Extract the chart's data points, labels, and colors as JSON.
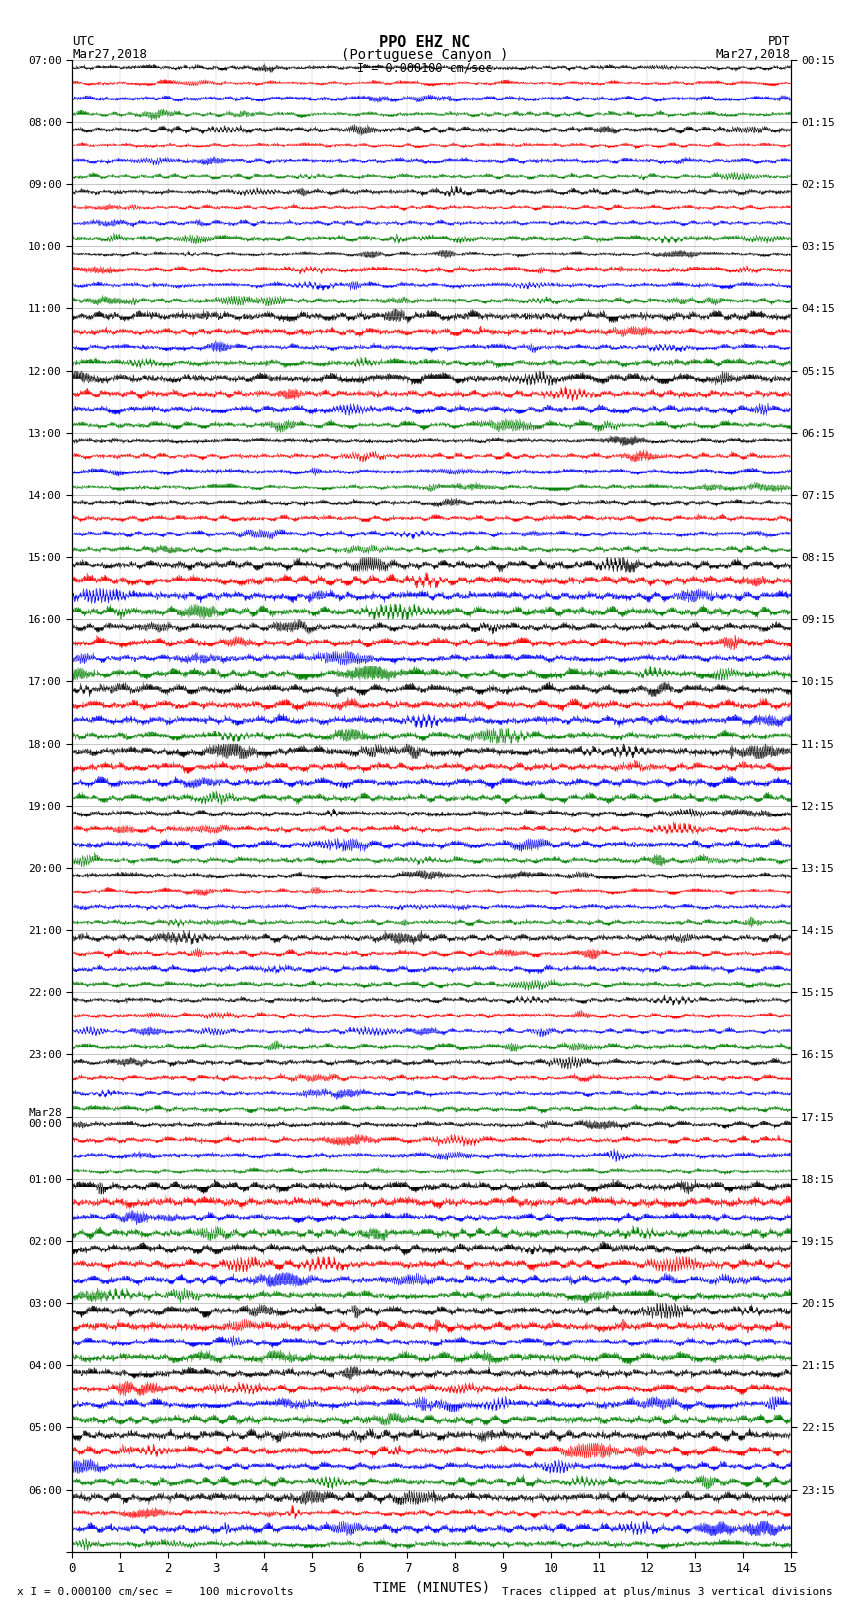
{
  "title_line1": "PPO EHZ NC",
  "title_line2": "(Portuguese Canyon )",
  "title_line3": "I = 0.000100 cm/sec",
  "left_label_line1": "UTC",
  "left_label_line2": "Mar27,2018",
  "right_label_line1": "PDT",
  "right_label_line2": "Mar27,2018",
  "xlabel": "TIME (MINUTES)",
  "footer_left": "x I = 0.000100 cm/sec =    100 microvolts",
  "footer_right": "Traces clipped at plus/minus 3 vertical divisions",
  "xlim": [
    0,
    15
  ],
  "xticks": [
    0,
    1,
    2,
    3,
    4,
    5,
    6,
    7,
    8,
    9,
    10,
    11,
    12,
    13,
    14,
    15
  ],
  "colors": [
    "black",
    "red",
    "blue",
    "green"
  ],
  "utc_labels": [
    "07:00",
    "08:00",
    "09:00",
    "10:00",
    "11:00",
    "12:00",
    "13:00",
    "14:00",
    "15:00",
    "16:00",
    "17:00",
    "18:00",
    "19:00",
    "20:00",
    "21:00",
    "22:00",
    "23:00",
    "Mar28\n00:00",
    "01:00",
    "02:00",
    "03:00",
    "04:00",
    "05:00",
    "06:00"
  ],
  "pdt_labels": [
    "00:15",
    "01:15",
    "02:15",
    "03:15",
    "04:15",
    "05:15",
    "06:15",
    "07:15",
    "08:15",
    "09:15",
    "10:15",
    "11:15",
    "12:15",
    "13:15",
    "14:15",
    "15:15",
    "16:15",
    "17:15",
    "18:15",
    "19:15",
    "20:15",
    "21:15",
    "22:15",
    "23:15"
  ],
  "n_hours": 24,
  "traces_per_hour": 4,
  "noise_seed": 42,
  "bg_color": "white",
  "plot_bg_color": "white",
  "amp_by_hour": [
    0.55,
    0.55,
    0.55,
    0.55,
    0.65,
    0.7,
    0.55,
    0.55,
    0.8,
    1.0,
    1.0,
    1.0,
    0.7,
    0.55,
    0.65,
    0.55,
    0.55,
    0.55,
    0.9,
    1.0,
    1.0,
    1.0,
    1.0,
    1.0
  ]
}
